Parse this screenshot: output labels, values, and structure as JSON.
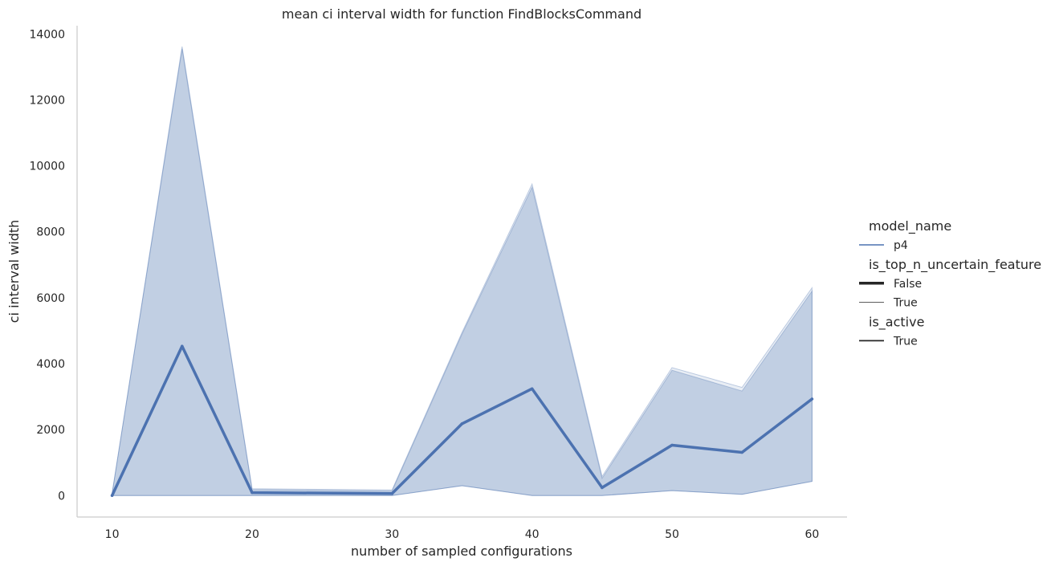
{
  "chart_data": {
    "type": "line",
    "title": "mean ci interval width for function FindBlocksCommand",
    "xlabel": "number of sampled configurations",
    "ylabel": "ci interval width",
    "xlim": [
      7.5,
      62.5
    ],
    "ylim": [
      -650,
      14250
    ],
    "xticks": [
      10,
      20,
      30,
      40,
      50,
      60
    ],
    "yticks": [
      0,
      2000,
      4000,
      6000,
      8000,
      10000,
      12000,
      14000
    ],
    "grid": false,
    "legend_position": "right",
    "colors": {
      "series": "#4c72b0",
      "band": "#4c72b0",
      "axis": "#cccccc",
      "text": "#262626"
    },
    "legend": [
      {
        "kind": "title",
        "text": "model_name"
      },
      {
        "kind": "entry",
        "text": "p4",
        "style": "hue"
      },
      {
        "kind": "title",
        "text": "is_top_n_uncertain_feature"
      },
      {
        "kind": "entry",
        "text": "False",
        "style": "thick"
      },
      {
        "kind": "entry",
        "text": "True",
        "style": "thin"
      },
      {
        "kind": "title",
        "text": "is_active"
      },
      {
        "kind": "entry",
        "text": "True",
        "style": "solid"
      }
    ],
    "series": [
      {
        "name": "False",
        "style": "thick",
        "x": [
          10,
          15,
          20,
          30,
          35,
          40,
          45,
          50,
          55,
          60
        ],
        "y": [
          0,
          4530,
          90,
          60,
          2180,
          3240,
          240,
          1530,
          1310,
          2930
        ],
        "ci_lower": [
          0,
          0,
          0,
          0,
          300,
          0,
          0,
          150,
          40,
          430
        ],
        "ci_upper": [
          60,
          13550,
          180,
          140,
          4900,
          9350,
          520,
          3800,
          3170,
          6200
        ]
      },
      {
        "name": "True",
        "style": "thin",
        "x": [
          10,
          15,
          20,
          30,
          35,
          40,
          45,
          50,
          55,
          60
        ],
        "y": [
          0,
          4530,
          90,
          60,
          2180,
          3240,
          240,
          1530,
          1310,
          2930
        ],
        "ci_lower": [
          0,
          0,
          0,
          0,
          300,
          0,
          0,
          150,
          40,
          430
        ],
        "ci_upper": [
          60,
          13620,
          210,
          170,
          4950,
          9450,
          580,
          3880,
          3280,
          6300
        ]
      }
    ]
  }
}
